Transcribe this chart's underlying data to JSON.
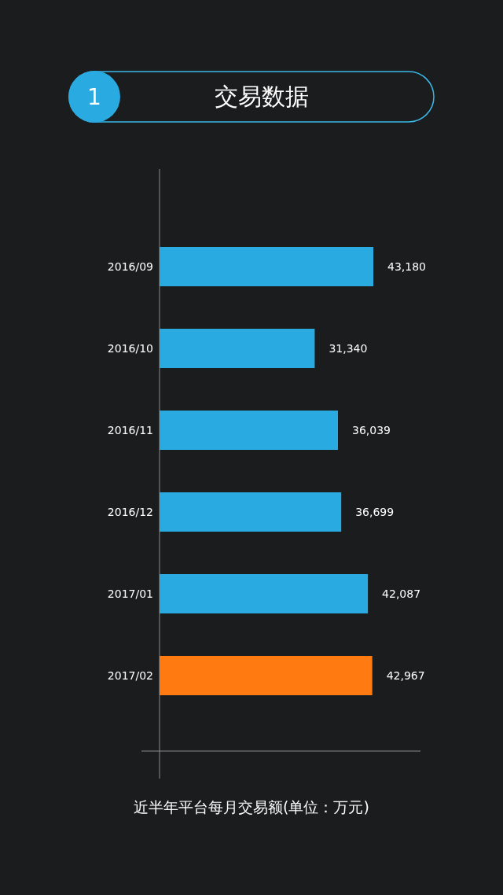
{
  "chart_data": {
    "type": "bar",
    "orientation": "horizontal",
    "title": "交易数据",
    "annotations": [
      "1"
    ],
    "xlabel": "近半年平台每月交易额(单位：万元)",
    "categories": [
      "2016/09",
      "2016/10",
      "2016/11",
      "2016/12",
      "2017/01",
      "2017/02"
    ],
    "values": [
      43180,
      31340,
      36039,
      36699,
      42087,
      42967
    ],
    "value_labels": [
      "43,180",
      "31,340",
      "36,039",
      "36,699",
      "42,087",
      "42,967"
    ],
    "colors": [
      "#29abe2",
      "#29abe2",
      "#29abe2",
      "#29abe2",
      "#29abe2",
      "#ff7a10"
    ]
  }
}
